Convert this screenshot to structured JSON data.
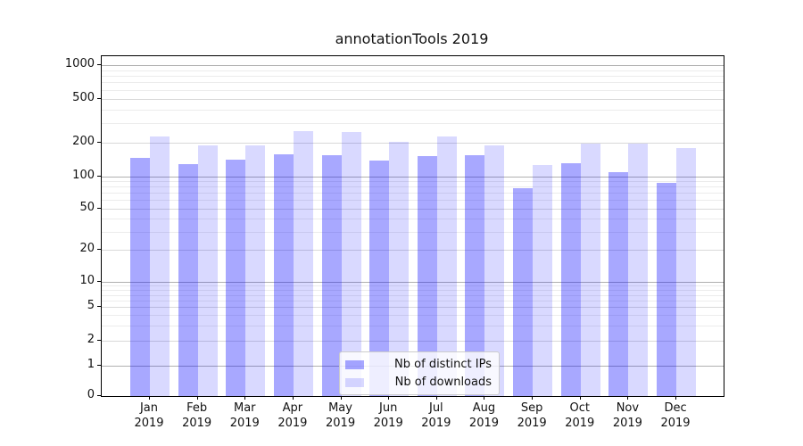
{
  "title": "annotationTools 2019",
  "chart_data": {
    "type": "bar",
    "title": "annotationTools 2019",
    "y_scale": "symlog",
    "categories": [
      "Jan",
      "Feb",
      "Mar",
      "Apr",
      "May",
      "Jun",
      "Jul",
      "Aug",
      "Sep",
      "Oct",
      "Nov",
      "Dec"
    ],
    "category_year": "2019",
    "series": [
      {
        "name": "Nb of distinct IPs",
        "color": "rgba(0,0,255,0.34)",
        "values": [
          146,
          129,
          141,
          160,
          155,
          139,
          152,
          155,
          78,
          131,
          110,
          87
        ]
      },
      {
        "name": "Nb of downloads",
        "color": "rgba(0,0,255,0.15)",
        "values": [
          230,
          189,
          190,
          257,
          252,
          207,
          228,
          189,
          127,
          199,
          199,
          182
        ]
      }
    ],
    "yticks": [
      0,
      1,
      2,
      5,
      10,
      20,
      50,
      100,
      200,
      500,
      1000
    ],
    "ylim": [
      0,
      1200
    ],
    "xlabel": "",
    "ylabel": "",
    "grid": "on",
    "legend_position": "lower-center-inside",
    "gridline_colors": {
      "decade": "#b0b0b0",
      "labeled": "#d9d9d9",
      "minor": "#ececec"
    }
  }
}
